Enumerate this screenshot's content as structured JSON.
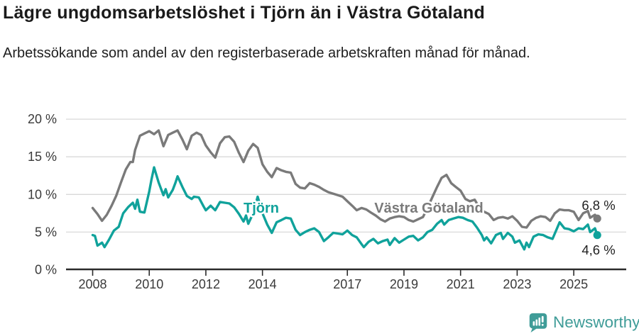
{
  "header": {
    "title": "Lägre ungdomsarbetslöshet i Tjörn än i Västra Götaland",
    "subtitle": "Arbetssökande som andel av den registerbaserade arbetskraften månad för månad."
  },
  "chart_data": {
    "type": "line",
    "title": "Lägre ungdomsarbetslöshet i Tjörn än i Västra Götaland",
    "subtitle": "Arbetssökande som andel av den registerbaserade arbetskraften månad för månad.",
    "unit": "%",
    "x_axis": {
      "ticks": [
        2008,
        2010,
        2012,
        2014,
        2017,
        2019,
        2021,
        2023,
        2025
      ],
      "range": [
        2007.7,
        2026.3
      ]
    },
    "y_axis": {
      "ticks": [
        0,
        5,
        10,
        15,
        20
      ],
      "tick_labels": [
        "0 %",
        "5 %",
        "10 %",
        "15 %",
        "20 %"
      ],
      "range": [
        0,
        21
      ],
      "gridlines": true
    },
    "legend_position": "inline-labels-on-lines",
    "series": [
      {
        "name": "Västra Götaland",
        "color": "#7a7a7a",
        "end_value": 6.8,
        "end_label": "6,8 %",
        "points": [
          [
            2008.0,
            8.2
          ],
          [
            2008.17,
            7.4
          ],
          [
            2008.33,
            6.5
          ],
          [
            2008.5,
            7.3
          ],
          [
            2008.67,
            8.5
          ],
          [
            2008.83,
            9.8
          ],
          [
            2009.0,
            11.6
          ],
          [
            2009.17,
            13.3
          ],
          [
            2009.33,
            14.3
          ],
          [
            2009.42,
            14.3
          ],
          [
            2009.5,
            15.9
          ],
          [
            2009.67,
            17.8
          ],
          [
            2009.83,
            18.1
          ],
          [
            2010.0,
            18.4
          ],
          [
            2010.17,
            18.0
          ],
          [
            2010.33,
            18.5
          ],
          [
            2010.5,
            16.4
          ],
          [
            2010.67,
            17.9
          ],
          [
            2010.83,
            18.2
          ],
          [
            2011.0,
            18.5
          ],
          [
            2011.17,
            17.3
          ],
          [
            2011.33,
            16.0
          ],
          [
            2011.5,
            17.8
          ],
          [
            2011.67,
            18.2
          ],
          [
            2011.83,
            17.9
          ],
          [
            2012.0,
            16.5
          ],
          [
            2012.17,
            15.6
          ],
          [
            2012.33,
            14.9
          ],
          [
            2012.5,
            16.8
          ],
          [
            2012.67,
            17.6
          ],
          [
            2012.83,
            17.7
          ],
          [
            2013.0,
            17.0
          ],
          [
            2013.17,
            15.5
          ],
          [
            2013.33,
            14.3
          ],
          [
            2013.5,
            15.8
          ],
          [
            2013.67,
            16.7
          ],
          [
            2013.83,
            16.2
          ],
          [
            2014.0,
            14.0
          ],
          [
            2014.17,
            13.0
          ],
          [
            2014.33,
            12.3
          ],
          [
            2014.5,
            13.5
          ],
          [
            2014.67,
            13.2
          ],
          [
            2014.83,
            13.0
          ],
          [
            2015.0,
            12.9
          ],
          [
            2015.17,
            11.4
          ],
          [
            2015.33,
            10.9
          ],
          [
            2015.5,
            10.8
          ],
          [
            2015.67,
            11.5
          ],
          [
            2015.83,
            11.3
          ],
          [
            2016.0,
            11.0
          ],
          [
            2016.17,
            10.6
          ],
          [
            2016.33,
            10.3
          ],
          [
            2016.5,
            10.1
          ],
          [
            2016.67,
            9.9
          ],
          [
            2016.83,
            9.7
          ],
          [
            2017.0,
            9.1
          ],
          [
            2017.17,
            8.5
          ],
          [
            2017.33,
            7.9
          ],
          [
            2017.5,
            8.2
          ],
          [
            2017.67,
            8.0
          ],
          [
            2017.83,
            7.6
          ],
          [
            2018.0,
            7.2
          ],
          [
            2018.17,
            6.7
          ],
          [
            2018.33,
            6.4
          ],
          [
            2018.5,
            6.8
          ],
          [
            2018.67,
            7.0
          ],
          [
            2018.83,
            7.1
          ],
          [
            2019.0,
            7.0
          ],
          [
            2019.17,
            6.6
          ],
          [
            2019.33,
            6.4
          ],
          [
            2019.5,
            6.7
          ],
          [
            2019.67,
            7.0
          ],
          [
            2019.83,
            8.2
          ],
          [
            2020.0,
            9.6
          ],
          [
            2020.17,
            11.0
          ],
          [
            2020.33,
            12.2
          ],
          [
            2020.5,
            12.6
          ],
          [
            2020.67,
            11.5
          ],
          [
            2020.83,
            11.0
          ],
          [
            2021.0,
            10.5
          ],
          [
            2021.17,
            9.4
          ],
          [
            2021.33,
            9.1
          ],
          [
            2021.5,
            9.3
          ],
          [
            2021.67,
            8.2
          ],
          [
            2021.83,
            7.7
          ],
          [
            2022.0,
            7.4
          ],
          [
            2022.17,
            6.6
          ],
          [
            2022.33,
            6.9
          ],
          [
            2022.5,
            7.0
          ],
          [
            2022.67,
            6.8
          ],
          [
            2022.83,
            7.1
          ],
          [
            2023.0,
            6.5
          ],
          [
            2023.17,
            5.7
          ],
          [
            2023.33,
            5.6
          ],
          [
            2023.5,
            6.5
          ],
          [
            2023.67,
            6.9
          ],
          [
            2023.83,
            7.1
          ],
          [
            2024.0,
            7.0
          ],
          [
            2024.17,
            6.5
          ],
          [
            2024.33,
            7.5
          ],
          [
            2024.5,
            8.0
          ],
          [
            2024.67,
            7.9
          ],
          [
            2024.83,
            7.9
          ],
          [
            2025.0,
            7.7
          ],
          [
            2025.17,
            6.6
          ],
          [
            2025.33,
            7.5
          ],
          [
            2025.5,
            7.8
          ],
          [
            2025.58,
            6.9
          ],
          [
            2025.75,
            7.3
          ],
          [
            2025.83,
            6.8
          ]
        ]
      },
      {
        "name": "Tjörn",
        "color": "#10a29b",
        "end_value": 4.6,
        "end_label": "4,6 %",
        "points": [
          [
            2008.0,
            4.6
          ],
          [
            2008.08,
            4.5
          ],
          [
            2008.17,
            3.2
          ],
          [
            2008.33,
            3.6
          ],
          [
            2008.42,
            3.0
          ],
          [
            2008.58,
            4.0
          ],
          [
            2008.75,
            5.2
          ],
          [
            2008.92,
            5.7
          ],
          [
            2009.08,
            7.5
          ],
          [
            2009.25,
            8.3
          ],
          [
            2009.42,
            8.9
          ],
          [
            2009.5,
            8.1
          ],
          [
            2009.58,
            9.3
          ],
          [
            2009.67,
            7.7
          ],
          [
            2009.83,
            7.6
          ],
          [
            2010.0,
            10.4
          ],
          [
            2010.08,
            12.0
          ],
          [
            2010.17,
            13.6
          ],
          [
            2010.33,
            11.6
          ],
          [
            2010.5,
            9.9
          ],
          [
            2010.58,
            10.7
          ],
          [
            2010.67,
            9.6
          ],
          [
            2010.83,
            10.6
          ],
          [
            2010.92,
            11.5
          ],
          [
            2011.0,
            12.4
          ],
          [
            2011.17,
            11.0
          ],
          [
            2011.33,
            9.8
          ],
          [
            2011.5,
            9.4
          ],
          [
            2011.58,
            9.7
          ],
          [
            2011.75,
            9.6
          ],
          [
            2011.92,
            8.4
          ],
          [
            2012.0,
            7.9
          ],
          [
            2012.17,
            8.5
          ],
          [
            2012.33,
            7.9
          ],
          [
            2012.5,
            9.0
          ],
          [
            2012.67,
            8.9
          ],
          [
            2012.83,
            8.8
          ],
          [
            2013.0,
            8.3
          ],
          [
            2013.17,
            7.4
          ],
          [
            2013.33,
            6.4
          ],
          [
            2013.42,
            7.2
          ],
          [
            2013.5,
            6.1
          ],
          [
            2013.67,
            7.5
          ],
          [
            2013.83,
            9.7
          ],
          [
            2014.0,
            7.5
          ],
          [
            2014.17,
            6.0
          ],
          [
            2014.33,
            4.9
          ],
          [
            2014.5,
            6.3
          ],
          [
            2014.67,
            6.6
          ],
          [
            2014.83,
            6.9
          ],
          [
            2015.0,
            6.8
          ],
          [
            2015.17,
            5.3
          ],
          [
            2015.33,
            4.6
          ],
          [
            2015.5,
            5.0
          ],
          [
            2015.67,
            5.3
          ],
          [
            2015.83,
            5.5
          ],
          [
            2016.0,
            5.0
          ],
          [
            2016.17,
            3.8
          ],
          [
            2016.33,
            4.3
          ],
          [
            2016.5,
            4.9
          ],
          [
            2016.67,
            4.8
          ],
          [
            2016.83,
            4.7
          ],
          [
            2017.0,
            5.2
          ],
          [
            2017.17,
            4.6
          ],
          [
            2017.33,
            4.3
          ],
          [
            2017.5,
            3.4
          ],
          [
            2017.58,
            3.0
          ],
          [
            2017.75,
            3.7
          ],
          [
            2017.92,
            4.1
          ],
          [
            2018.08,
            3.5
          ],
          [
            2018.25,
            3.8
          ],
          [
            2018.42,
            4.0
          ],
          [
            2018.5,
            3.3
          ],
          [
            2018.67,
            4.2
          ],
          [
            2018.83,
            3.6
          ],
          [
            2019.0,
            4.0
          ],
          [
            2019.17,
            4.4
          ],
          [
            2019.33,
            4.5
          ],
          [
            2019.5,
            3.9
          ],
          [
            2019.67,
            4.3
          ],
          [
            2019.83,
            5.0
          ],
          [
            2020.0,
            5.3
          ],
          [
            2020.17,
            6.1
          ],
          [
            2020.33,
            6.6
          ],
          [
            2020.42,
            6.0
          ],
          [
            2020.58,
            6.6
          ],
          [
            2020.75,
            6.8
          ],
          [
            2020.92,
            7.0
          ],
          [
            2021.08,
            6.9
          ],
          [
            2021.25,
            6.6
          ],
          [
            2021.42,
            6.4
          ],
          [
            2021.58,
            5.6
          ],
          [
            2021.75,
            4.6
          ],
          [
            2021.83,
            3.9
          ],
          [
            2021.92,
            4.3
          ],
          [
            2022.08,
            3.5
          ],
          [
            2022.25,
            4.6
          ],
          [
            2022.42,
            4.9
          ],
          [
            2022.5,
            4.1
          ],
          [
            2022.67,
            4.9
          ],
          [
            2022.83,
            4.4
          ],
          [
            2022.92,
            3.6
          ],
          [
            2023.08,
            3.9
          ],
          [
            2023.25,
            2.7
          ],
          [
            2023.33,
            3.6
          ],
          [
            2023.42,
            3.0
          ],
          [
            2023.58,
            4.4
          ],
          [
            2023.75,
            4.7
          ],
          [
            2023.92,
            4.6
          ],
          [
            2024.08,
            4.3
          ],
          [
            2024.25,
            4.1
          ],
          [
            2024.5,
            6.3
          ],
          [
            2024.67,
            5.5
          ],
          [
            2024.83,
            5.4
          ],
          [
            2025.0,
            5.1
          ],
          [
            2025.17,
            5.5
          ],
          [
            2025.33,
            5.4
          ],
          [
            2025.5,
            6.0
          ],
          [
            2025.58,
            5.0
          ],
          [
            2025.75,
            5.5
          ],
          [
            2025.83,
            4.6
          ]
        ]
      }
    ]
  },
  "colors": {
    "tjorn_line": "#10a29b",
    "vastra_gotaland_line": "#7a7a7a",
    "gridline": "#d9d9d9",
    "axis": "#2b2b2b",
    "text": "#1f1f1f",
    "brand": "#3f9c98"
  },
  "footer": {
    "brand": "Newsworthy",
    "logo_icon": "bar-chart-speech-bubble"
  }
}
